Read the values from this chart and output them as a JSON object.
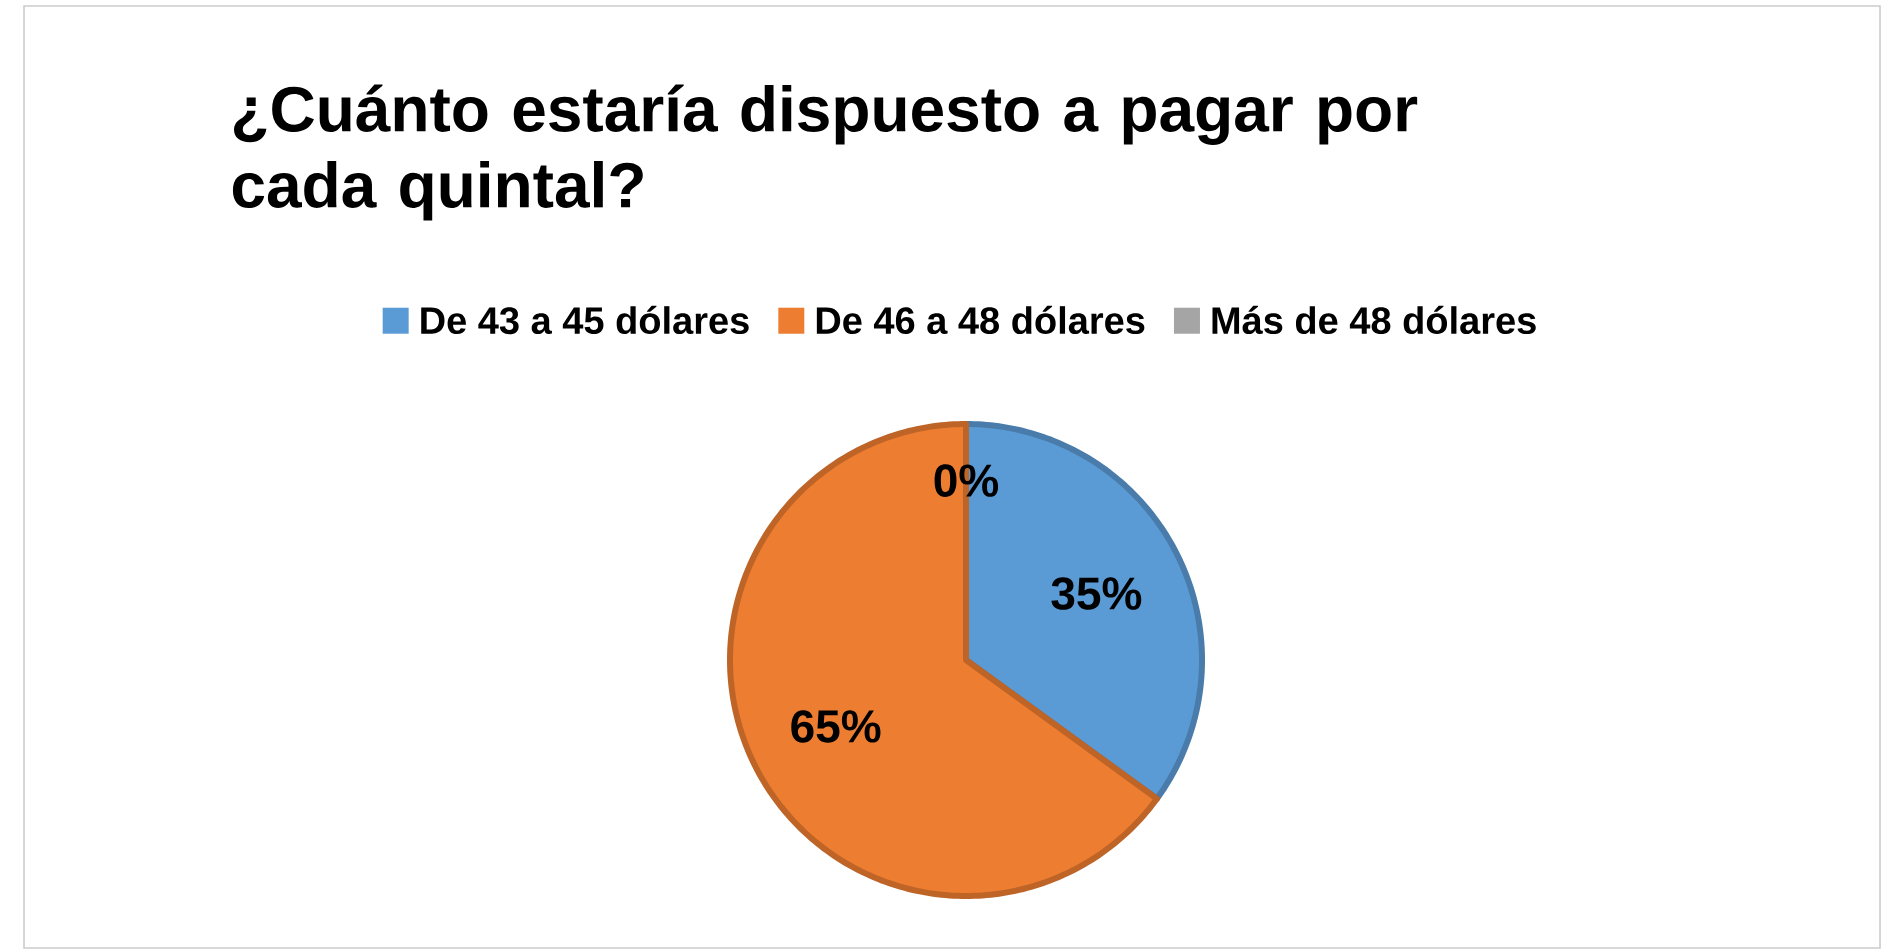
{
  "chart_data": {
    "type": "pie",
    "title": "¿Cuánto estaría dispuesto a pagar por cada quintal?",
    "categories": [
      "De 43 a 45 dólares",
      "De 46 a 48 dólares",
      "Más de 48 dólares"
    ],
    "values": [
      35,
      65,
      0
    ],
    "colors": [
      "#5b9bd5",
      "#ed7d31",
      "#a5a5a5"
    ],
    "value_labels": [
      "35%",
      "65%",
      "0%"
    ],
    "legend": "top"
  }
}
